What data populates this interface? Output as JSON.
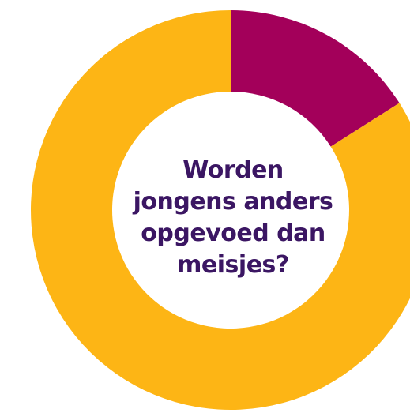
{
  "chart_data": {
    "type": "pie",
    "variant": "donut",
    "title_lines": [
      "Worden",
      "jongens anders",
      "opgevoed dan",
      "meisjes?"
    ],
    "slices": [
      {
        "value": 16,
        "color": "#a3005a"
      },
      {
        "value": 84,
        "color": "#fdb515"
      }
    ],
    "start_angle_deg": 0,
    "direction": "clockwise",
    "legend": "none",
    "title_color": "#3b1663"
  }
}
